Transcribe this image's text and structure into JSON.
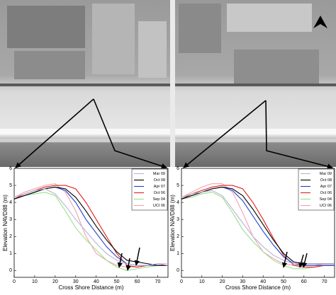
{
  "chart_data": [
    {
      "type": "line",
      "xlabel": "Cross Shore Distance (m)",
      "ylabel": "Elevation NAVD88 (m)",
      "x": [
        0,
        5,
        10,
        15,
        20,
        25,
        30,
        35,
        40,
        45,
        50,
        55,
        60,
        65,
        70,
        75
      ],
      "xlim": [
        0,
        75
      ],
      "ylim": [
        -0.4,
        6
      ],
      "xticks": [
        0,
        10,
        20,
        30,
        40,
        50,
        60,
        70
      ],
      "yticks": [
        0,
        1,
        2,
        3,
        4,
        5,
        6
      ],
      "legend": "upper right",
      "series": [
        {
          "name": "Mar 09",
          "color": "#b9b3d6",
          "values": [
            4.3,
            4.5,
            4.7,
            4.8,
            4.5,
            3.8,
            3.0,
            2.3,
            1.6,
            1.0,
            0.6,
            0.4,
            0.3,
            0.3,
            0.4,
            0.3
          ]
        },
        {
          "name": "Oct 08",
          "color": "#000000",
          "values": [
            4.2,
            4.4,
            4.6,
            4.8,
            4.9,
            4.8,
            4.3,
            3.5,
            2.6,
            1.8,
            1.1,
            0.6,
            0.5,
            0.4,
            0.3,
            0.3
          ]
        },
        {
          "name": "Apr 07",
          "color": "#1f3fd0",
          "values": [
            4.2,
            4.4,
            4.6,
            4.8,
            4.9,
            4.7,
            4.0,
            3.0,
            2.2,
            1.4,
            0.8,
            0.4,
            0.3,
            0.3,
            0.3,
            0.3
          ]
        },
        {
          "name": "Oct 06",
          "color": "#e0201a",
          "values": [
            4.2,
            4.5,
            4.7,
            4.9,
            5.0,
            5.0,
            4.8,
            4.0,
            3.0,
            2.0,
            1.0,
            0.3,
            0.2,
            0.3,
            0.4,
            0.3
          ]
        },
        {
          "name": "Sep 04",
          "color": "#9be08c",
          "values": [
            4.2,
            4.4,
            4.5,
            4.6,
            4.4,
            3.5,
            2.5,
            1.8,
            1.2,
            0.6,
            0.2,
            0.0,
            0.1,
            0.2,
            0.3,
            0.3
          ]
        },
        {
          "name": "UCI 06",
          "color": "#f2a0b0",
          "values": [
            4.3,
            4.6,
            4.8,
            5.0,
            5.1,
            4.6,
            3.5,
            2.0,
            1.0,
            0.6,
            0.3,
            0.2,
            0.2,
            0.3,
            0.4,
            0.4
          ]
        }
      ]
    },
    {
      "type": "line",
      "xlabel": "Cross Shore Distance (m)",
      "ylabel": "Elevation NAVD88 (m)",
      "x": [
        0,
        5,
        10,
        15,
        20,
        25,
        30,
        35,
        40,
        45,
        50,
        55,
        60,
        65,
        70,
        75
      ],
      "xlim": [
        0,
        75
      ],
      "ylim": [
        -0.4,
        6
      ],
      "xticks": [
        0,
        10,
        20,
        30,
        40,
        50,
        60,
        70
      ],
      "yticks": [
        0,
        1,
        2,
        3,
        4,
        5,
        6
      ],
      "legend": "upper right",
      "series": [
        {
          "name": "Mar 09",
          "color": "#b9b3d6",
          "values": [
            4.3,
            4.5,
            4.6,
            4.7,
            4.4,
            3.6,
            2.8,
            2.0,
            1.4,
            0.9,
            0.6,
            0.4,
            0.4,
            0.4,
            0.4,
            0.4
          ]
        },
        {
          "name": "Oct 08",
          "color": "#000000",
          "values": [
            4.2,
            4.4,
            4.6,
            4.8,
            4.9,
            4.8,
            4.4,
            3.6,
            2.7,
            1.8,
            1.0,
            0.5,
            0.4,
            0.4,
            0.4,
            0.4
          ]
        },
        {
          "name": "Apr 07",
          "color": "#1f3fd0",
          "values": [
            4.2,
            4.4,
            4.6,
            4.8,
            4.9,
            4.7,
            4.1,
            3.2,
            2.3,
            1.5,
            0.8,
            0.4,
            0.3,
            0.3,
            0.3,
            0.3
          ]
        },
        {
          "name": "Oct 06",
          "color": "#e0201a",
          "values": [
            4.2,
            4.5,
            4.7,
            4.9,
            5.0,
            5.0,
            4.8,
            4.0,
            3.0,
            1.9,
            0.9,
            0.3,
            0.2,
            0.2,
            0.3,
            0.3
          ]
        },
        {
          "name": "Sep 04",
          "color": "#9be08c",
          "values": [
            4.2,
            4.3,
            4.5,
            4.6,
            4.3,
            3.4,
            2.4,
            1.7,
            1.1,
            0.6,
            0.3,
            0.1,
            0.1,
            0.2,
            0.3,
            0.3
          ]
        },
        {
          "name": "UCI 06",
          "color": "#f2a0b0",
          "values": [
            4.3,
            4.6,
            4.9,
            5.1,
            5.1,
            4.6,
            3.4,
            2.0,
            1.1,
            0.7,
            0.4,
            0.3,
            0.3,
            0.3,
            0.4,
            0.4
          ]
        }
      ]
    }
  ]
}
